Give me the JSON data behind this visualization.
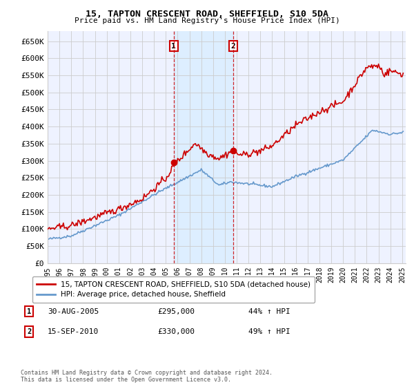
{
  "title": "15, TAPTON CRESCENT ROAD, SHEFFIELD, S10 5DA",
  "subtitle": "Price paid vs. HM Land Registry's House Price Index (HPI)",
  "ylabel_ticks": [
    "£0",
    "£50K",
    "£100K",
    "£150K",
    "£200K",
    "£250K",
    "£300K",
    "£350K",
    "£400K",
    "£450K",
    "£500K",
    "£550K",
    "£600K",
    "£650K"
  ],
  "ytick_values": [
    0,
    50000,
    100000,
    150000,
    200000,
    250000,
    300000,
    350000,
    400000,
    450000,
    500000,
    550000,
    600000,
    650000
  ],
  "ylim": [
    0,
    680000
  ],
  "xlim_start": 1995.0,
  "xlim_end": 2025.3,
  "legend_line1": "15, TAPTON CRESCENT ROAD, SHEFFIELD, S10 5DA (detached house)",
  "legend_line2": "HPI: Average price, detached house, Sheffield",
  "marker1_label": "1",
  "marker1_date": "30-AUG-2005",
  "marker1_price": "£295,000",
  "marker1_hpi": "44% ↑ HPI",
  "marker1_x": 2005.67,
  "marker1_y": 295000,
  "marker2_label": "2",
  "marker2_date": "15-SEP-2010",
  "marker2_price": "£330,000",
  "marker2_hpi": "49% ↑ HPI",
  "marker2_x": 2010.71,
  "marker2_y": 330000,
  "red_color": "#cc0000",
  "blue_color": "#6699cc",
  "shade_color": "#ddeeff",
  "marker_box_color": "#cc0000",
  "grid_color": "#cccccc",
  "background_color": "#ffffff",
  "plot_bg_color": "#eef2ff",
  "footnote": "Contains HM Land Registry data © Crown copyright and database right 2024.\nThis data is licensed under the Open Government Licence v3.0."
}
